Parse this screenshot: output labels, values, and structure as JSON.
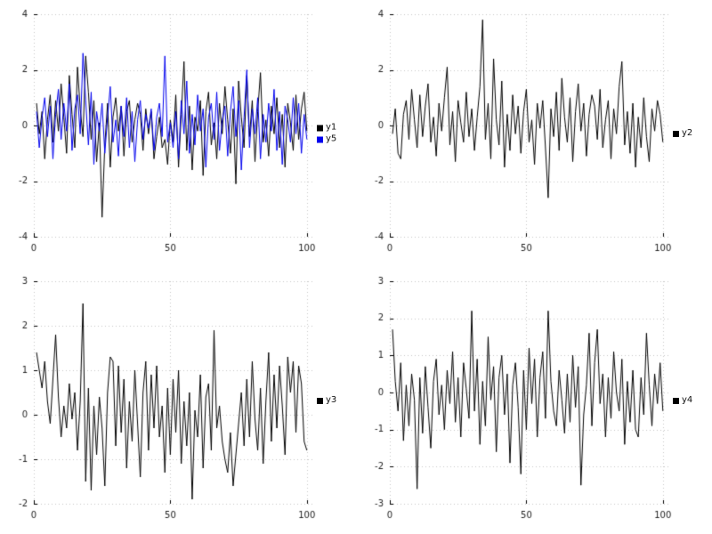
{
  "page": {
    "background": "#ffffff"
  },
  "chart_data": [
    {
      "type": "line",
      "position": "top-left",
      "title": "",
      "xlabel": "",
      "ylabel": "",
      "xlim": [
        0,
        103
      ],
      "ylim": [
        -4,
        4
      ],
      "x_ticks": [
        0,
        50,
        100
      ],
      "y_ticks": [
        -4,
        -2,
        0,
        2,
        4
      ],
      "grid": true,
      "legend_position": "right-center",
      "series": [
        {
          "name": "y1",
          "color": "#000000",
          "values": [
            0.8,
            -0.3,
            0.5,
            -1.2,
            0.2,
            1.1,
            -0.6,
            0.9,
            -0.2,
            1.5,
            0.3,
            -1.0,
            1.8,
            0.4,
            -0.8,
            2.1,
            0.6,
            -0.4,
            2.5,
            1.2,
            -0.5,
            0.9,
            -1.3,
            0.1,
            -3.3,
            -0.7,
            0.8,
            -1.5,
            0.3,
            1.0,
            -0.2,
            0.7,
            -1.1,
            0.5,
            0.9,
            -0.6,
            0.2,
            0.8,
            0.4,
            -0.9,
            0.6,
            -0.3,
            0.5,
            -1.2,
            -0.4,
            0.3,
            -0.8,
            -0.5,
            -1.4,
            0.2,
            -0.6,
            1.1,
            -1.5,
            0.4,
            2.3,
            -0.9,
            0.7,
            -1.6,
            0.3,
            -0.2,
            0.9,
            -1.8,
            0.5,
            1.2,
            -0.7,
            0.1,
            -1.2,
            0.8,
            -0.3,
            1.4,
            0.2,
            -1.0,
            0.6,
            -2.1,
            1.6,
            0.3,
            -0.8,
            1.8,
            -0.4,
            0.9,
            -1.3,
            0.5,
            1.9,
            -0.6,
            0.2,
            -1.1,
            0.7,
            -0.3,
            1.0,
            -0.8,
            0.4,
            -1.5,
            0.8,
            0.1,
            -0.9,
            1.1,
            -0.5,
            0.6,
            1.2,
            -0.2
          ]
        },
        {
          "name": "y5",
          "color": "#0000ee",
          "values": [
            0.5,
            -0.8,
            0.3,
            1.0,
            -0.4,
            0.7,
            -1.2,
            0.4,
            1.3,
            -0.5,
            0.8,
            -0.2,
            1.5,
            -0.9,
            0.6,
            1.1,
            -0.3,
            2.6,
            0.9,
            -0.7,
            1.2,
            -1.4,
            0.5,
            -0.2,
            0.8,
            -1.0,
            0.3,
            1.4,
            -0.6,
            0.2,
            -1.1,
            0.7,
            -0.4,
            1.0,
            -0.8,
            0.5,
            -1.3,
            0.2,
            0.9,
            -0.5,
            0.4,
            -0.1,
            0.6,
            -0.9,
            0.3,
            0.8,
            -0.4,
            2.5,
            -0.6,
            0.1,
            -0.8,
            0.5,
            -1.2,
            0.9,
            -0.3,
            1.6,
            -1.0,
            0.4,
            -0.7,
            1.1,
            -0.2,
            0.6,
            -1.5,
            0.3,
            0.8,
            -0.5,
            1.2,
            -0.9,
            0.2,
            0.7,
            -1.1,
            0.5,
            1.4,
            -0.4,
            0.9,
            -1.6,
            0.3,
            2.0,
            -0.8,
            0.6,
            -0.3,
            1.0,
            -1.2,
            0.4,
            -0.6,
            0.8,
            -0.2,
            1.3,
            -0.9,
            0.5,
            -1.4,
            0.7,
            0.2,
            -0.6,
            1.0,
            -0.3,
            0.8,
            -1.0,
            0.4,
            -0.5
          ]
        }
      ]
    },
    {
      "type": "line",
      "position": "top-right",
      "title": "",
      "xlabel": "",
      "ylabel": "",
      "xlim": [
        0,
        103
      ],
      "ylim": [
        -4,
        4
      ],
      "x_ticks": [
        0,
        50,
        100
      ],
      "y_ticks": [
        -4,
        -2,
        0,
        2,
        4
      ],
      "grid": true,
      "legend_position": "right-center",
      "series": [
        {
          "name": "y2",
          "color": "#000000",
          "values": [
            -0.3,
            0.6,
            -1.0,
            -1.2,
            0.4,
            0.9,
            -0.5,
            1.3,
            0.2,
            -0.8,
            1.1,
            -0.4,
            0.7,
            1.5,
            -0.6,
            0.3,
            -1.1,
            0.8,
            -0.2,
            1.0,
            2.1,
            -0.7,
            0.5,
            -1.3,
            0.9,
            0.1,
            -0.6,
            1.2,
            -0.4,
            0.6,
            -0.9,
            0.3,
            1.4,
            3.8,
            -0.5,
            0.8,
            -1.2,
            2.4,
            0.2,
            -0.7,
            1.6,
            -1.5,
            0.4,
            -0.9,
            1.1,
            -0.3,
            0.7,
            -1.0,
            0.5,
            1.3,
            -0.6,
            0.2,
            -1.4,
            0.8,
            -0.1,
            0.9,
            -0.8,
            -2.6,
            0.6,
            -0.4,
            1.2,
            -0.9,
            1.7,
            0.3,
            -0.6,
            1.0,
            -1.3,
            0.5,
            1.5,
            -0.2,
            0.8,
            -1.1,
            0.4,
            1.1,
            0.7,
            -0.5,
            1.3,
            -0.8,
            0.2,
            0.9,
            -1.2,
            0.6,
            -0.3,
            1.4,
            2.3,
            -0.7,
            0.5,
            -1.0,
            0.8,
            -1.5,
            0.3,
            -0.8,
            1.0,
            -0.4,
            -1.3,
            0.6,
            -0.2,
            0.9,
            0.4,
            -0.6
          ]
        }
      ]
    },
    {
      "type": "line",
      "position": "bottom-left",
      "title": "",
      "xlabel": "",
      "ylabel": "",
      "xlim": [
        0,
        103
      ],
      "ylim": [
        -2,
        3
      ],
      "x_ticks": [
        0,
        50,
        100
      ],
      "y_ticks": [
        -2,
        -1,
        0,
        1,
        2,
        3
      ],
      "grid": true,
      "legend_position": "right-center",
      "series": [
        {
          "name": "y3",
          "color": "#000000",
          "values": [
            1.4,
            1.0,
            0.6,
            1.2,
            0.3,
            -0.2,
            0.8,
            1.8,
            0.4,
            -0.5,
            0.2,
            -0.3,
            0.7,
            -0.1,
            0.5,
            -0.8,
            0.3,
            2.5,
            -1.5,
            0.6,
            -1.7,
            0.2,
            -0.9,
            0.4,
            -0.3,
            -1.6,
            0.5,
            1.3,
            1.2,
            -0.7,
            1.1,
            -0.4,
            0.8,
            -1.2,
            0.3,
            -0.6,
            1.0,
            -0.2,
            -1.4,
            0.5,
            1.2,
            -0.8,
            0.9,
            -0.3,
            1.1,
            -0.5,
            0.2,
            -1.3,
            0.6,
            -0.9,
            0.8,
            -0.4,
            1.0,
            -1.1,
            0.3,
            -0.7,
            0.5,
            -1.9,
            0.1,
            -0.5,
            0.9,
            -1.2,
            0.4,
            0.7,
            -0.8,
            1.9,
            -0.3,
            0.2,
            -0.6,
            -1.0,
            -1.3,
            -0.4,
            -1.6,
            -0.9,
            -0.2,
            0.5,
            -0.7,
            0.8,
            -0.5,
            1.2,
            -0.1,
            -0.8,
            0.6,
            -1.1,
            0.3,
            1.4,
            -0.6,
            0.9,
            -0.3,
            1.1,
            0.2,
            -0.9,
            1.3,
            0.5,
            1.2,
            -0.4,
            1.1,
            0.7,
            -0.6,
            -0.8
          ]
        }
      ]
    },
    {
      "type": "line",
      "position": "bottom-right",
      "title": "",
      "xlabel": "",
      "ylabel": "",
      "xlim": [
        0,
        103
      ],
      "ylim": [
        -3,
        3
      ],
      "x_ticks": [
        0,
        50,
        100
      ],
      "y_ticks": [
        -3,
        -2,
        -1,
        0,
        1,
        2,
        3
      ],
      "grid": true,
      "legend_position": "right-center",
      "series": [
        {
          "name": "y4",
          "color": "#000000",
          "values": [
            1.7,
            0.3,
            -0.5,
            0.8,
            -1.3,
            0.2,
            -0.9,
            0.5,
            -0.2,
            -2.6,
            0.4,
            -1.1,
            0.7,
            -0.4,
            -1.5,
            0.3,
            0.9,
            -0.6,
            0.2,
            -1.0,
            0.6,
            -0.3,
            1.1,
            -0.8,
            0.4,
            -1.2,
            0.8,
            0.1,
            -0.7,
            2.2,
            -0.5,
            0.9,
            -1.4,
            0.3,
            -0.9,
            1.5,
            -0.2,
            0.7,
            -1.6,
            0.4,
            1.0,
            -0.6,
            0.5,
            -1.9,
            0.2,
            0.8,
            -0.4,
            -2.2,
            0.6,
            -1.0,
            1.2,
            -0.3,
            0.9,
            -1.2,
            0.4,
            1.1,
            -0.7,
            2.2,
            0.3,
            -0.5,
            -0.9,
            0.6,
            -0.2,
            -1.1,
            0.5,
            -0.8,
            1.0,
            -0.4,
            0.7,
            -2.5,
            -0.6,
            0.2,
            1.6,
            -0.9,
            0.8,
            1.7,
            -0.3,
            0.5,
            -1.2,
            0.4,
            -0.7,
            1.1,
            0.0,
            -0.5,
            0.9,
            -1.4,
            0.3,
            -0.8,
            0.6,
            -1.0,
            -1.2,
            0.4,
            -0.6,
            1.6,
            0.2,
            -0.9,
            0.5,
            -0.3,
            0.8,
            -0.5
          ]
        }
      ]
    }
  ]
}
